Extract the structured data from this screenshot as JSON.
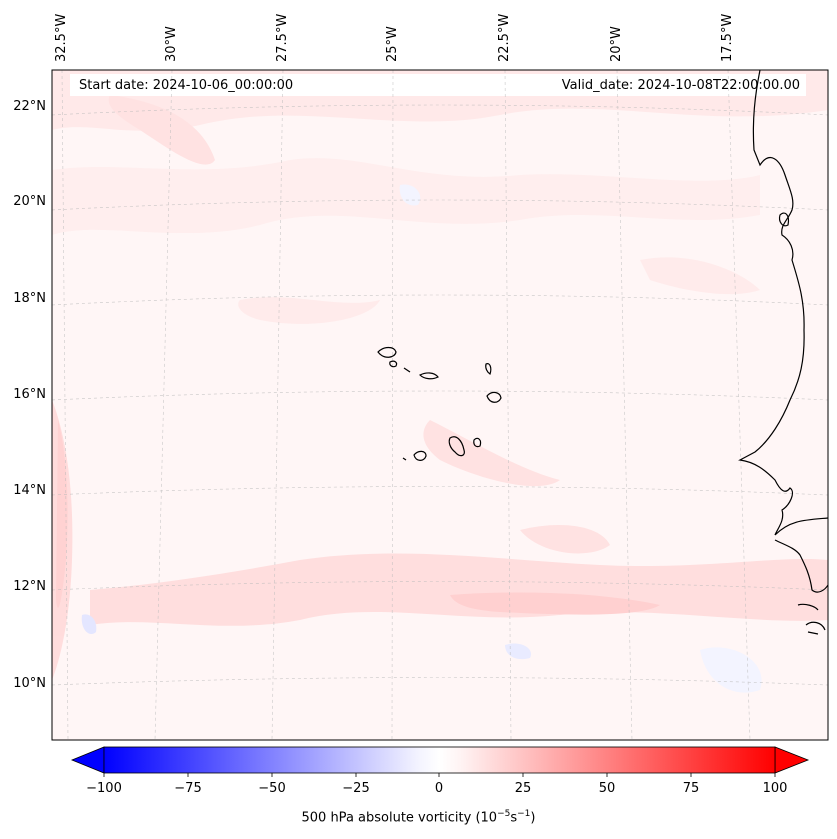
{
  "header": {
    "start_date": "Start date: 2024-10-06_00:00:00",
    "valid_date": "Valid_date: 2024-10-08T22:00:00.00"
  },
  "map": {
    "longitude_labels": [
      "32.5°W",
      "30°W",
      "27.5°W",
      "25°W",
      "22.5°W",
      "20°W",
      "17.5°W"
    ],
    "latitude_labels": [
      "22°N",
      "20°N",
      "18°N",
      "16°N",
      "14°N",
      "12°N",
      "10°N"
    ],
    "field": "500 hPa absolute vorticity"
  },
  "colorbar": {
    "ticks": [
      "−100",
      "−75",
      "−50",
      "−25",
      "0",
      "25",
      "50",
      "75",
      "100"
    ],
    "min": -100,
    "max": 100,
    "label_text": "500 hPa absolute vorticity (10",
    "label_exp1": "−5",
    "label_mid": "s",
    "label_exp2": "−1",
    "label_close": ")",
    "colors": {
      "negative": "#0000ff",
      "zero": "#ffffff",
      "positive": "#ff0000"
    }
  }
}
